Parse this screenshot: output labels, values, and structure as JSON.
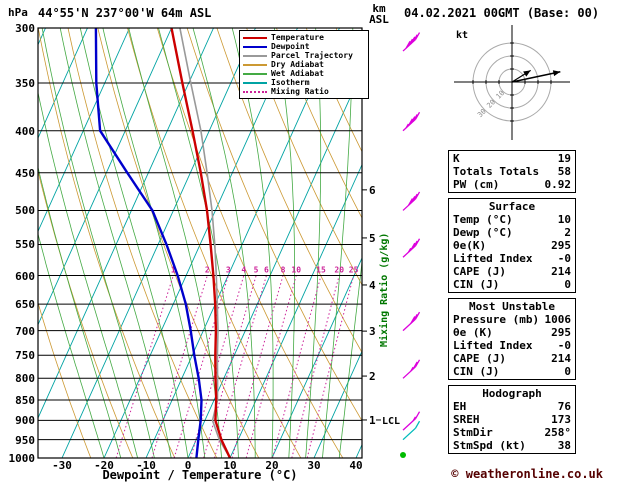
{
  "header": {
    "station": "44°55'N 237°00'W 64m ASL",
    "datetime": "04.02.2021 00GMT (Base: 00)",
    "pressure_unit": "hPa",
    "altitude_unit": [
      "km",
      "ASL"
    ]
  },
  "legend": {
    "items": [
      {
        "label": "Temperature",
        "color": "#CC0000",
        "dash": false
      },
      {
        "label": "Dewpoint",
        "color": "#0000CC",
        "dash": false
      },
      {
        "label": "Parcel Trajectory",
        "color": "#999999",
        "dash": false
      },
      {
        "label": "Dry Adiabat",
        "color": "#CC9933",
        "dash": false
      },
      {
        "label": "Wet Adiabat",
        "color": "#44AA44",
        "dash": false
      },
      {
        "label": "Isotherm",
        "color": "#00A3A3",
        "dash": false
      },
      {
        "label": "Mixing Ratio",
        "color": "#CC2299",
        "dash": true
      }
    ]
  },
  "axes": {
    "x_title": "Dewpoint / Temperature (°C)",
    "x_ticks": [
      -30,
      -20,
      -10,
      0,
      10,
      20,
      30,
      40
    ],
    "pressure_levels": [
      300,
      350,
      400,
      450,
      500,
      550,
      600,
      650,
      700,
      750,
      800,
      850,
      900,
      950,
      1000
    ],
    "km_ticks": [
      {
        "km": 6,
        "p": 472
      },
      {
        "km": 5,
        "p": 540
      },
      {
        "km": 4,
        "p": 616
      },
      {
        "km": 3,
        "p": 701
      },
      {
        "km": 2,
        "p": 795
      },
      {
        "km": 1,
        "p": 899,
        "lcl": true
      }
    ],
    "lcl_label": "LCL",
    "mixing_ratio_axis_label": "Mixing Ratio (g/kg)"
  },
  "chart_data": {
    "type": "skewt",
    "title": "44°55'N 237°00'W 64m ASL",
    "pressure_range_hpa": [
      300,
      1000
    ],
    "temp_axis_range_c": [
      -36,
      41
    ],
    "profiles": {
      "temperature_c": [
        [
          1000,
          10
        ],
        [
          950,
          6
        ],
        [
          900,
          2.5
        ],
        [
          850,
          0.5
        ],
        [
          800,
          -2
        ],
        [
          750,
          -4.5
        ],
        [
          700,
          -7
        ],
        [
          650,
          -10
        ],
        [
          600,
          -13.5
        ],
        [
          550,
          -17.5
        ],
        [
          500,
          -22
        ],
        [
          450,
          -27.5
        ],
        [
          400,
          -34
        ],
        [
          350,
          -41.5
        ],
        [
          300,
          -50
        ]
      ],
      "dewpoint_c": [
        [
          1000,
          2
        ],
        [
          950,
          0.5
        ],
        [
          900,
          -1
        ],
        [
          850,
          -3
        ],
        [
          800,
          -6
        ],
        [
          750,
          -9.5
        ],
        [
          700,
          -13
        ],
        [
          650,
          -17
        ],
        [
          600,
          -22
        ],
        [
          550,
          -28
        ],
        [
          500,
          -35
        ],
        [
          450,
          -45
        ],
        [
          400,
          -56
        ],
        [
          350,
          -62
        ],
        [
          300,
          -68
        ]
      ],
      "parcel_c": [
        [
          1000,
          10
        ],
        [
          950,
          5.5
        ],
        [
          900,
          1.8
        ],
        [
          850,
          0.8
        ],
        [
          800,
          -1.5
        ],
        [
          750,
          -4
        ],
        [
          700,
          -6.5
        ],
        [
          650,
          -9.5
        ],
        [
          600,
          -12.8
        ],
        [
          550,
          -16.5
        ],
        [
          500,
          -20.8
        ],
        [
          450,
          -26
        ],
        [
          400,
          -32
        ],
        [
          350,
          -39.5
        ],
        [
          300,
          -48
        ]
      ]
    },
    "mixing_ratio_lines_gkg": [
      1,
      2,
      3,
      4,
      5,
      6,
      8,
      10,
      15,
      20,
      25
    ],
    "wind_barbs": [
      {
        "p": 320,
        "speed_kt": 50,
        "color": "#DD00DD"
      },
      {
        "p": 400,
        "speed_kt": 45,
        "color": "#DD00DD"
      },
      {
        "p": 500,
        "speed_kt": 40,
        "color": "#DD00DD"
      },
      {
        "p": 570,
        "speed_kt": 35,
        "color": "#DD00DD"
      },
      {
        "p": 700,
        "speed_kt": 30,
        "color": "#DD00DD"
      },
      {
        "p": 800,
        "speed_kt": 25,
        "color": "#DD00DD"
      },
      {
        "p": 925,
        "speed_kt": 15,
        "color": "#DD00DD"
      },
      {
        "p": 950,
        "speed_kt": 10,
        "color": "#00BBBB"
      },
      {
        "p": 1000,
        "speed_kt": 5,
        "color": "#00BB00",
        "marker": "dot"
      }
    ],
    "hodograph": {
      "unit_label": "kt",
      "rings_kt": [
        10,
        20,
        30
      ],
      "storm_dir_deg": 258,
      "storm_speed_kt": 38
    }
  },
  "tables": {
    "sections": [
      {
        "id": "indices",
        "rows": [
          {
            "label": "K",
            "value": "19"
          },
          {
            "label": "Totals Totals",
            "value": "58"
          },
          {
            "label": "PW (cm)",
            "value": "0.92"
          }
        ]
      },
      {
        "id": "surface",
        "title": "Surface",
        "rows": [
          {
            "label": "Temp (°C)",
            "value": "10"
          },
          {
            "label": "Dewp (°C)",
            "value": "2"
          },
          {
            "label": "θe(K)",
            "value": "295"
          },
          {
            "label": "Lifted Index",
            "value": "-0"
          },
          {
            "label": "CAPE (J)",
            "value": "214"
          },
          {
            "label": "CIN (J)",
            "value": "0"
          }
        ]
      },
      {
        "id": "most-unstable",
        "title": "Most Unstable",
        "rows": [
          {
            "label": "Pressure (mb)",
            "value": "1006"
          },
          {
            "label": "θe (K)",
            "value": "295"
          },
          {
            "label": "Lifted Index",
            "value": "-0"
          },
          {
            "label": "CAPE (J)",
            "value": "214"
          },
          {
            "label": "CIN (J)",
            "value": "0"
          }
        ]
      },
      {
        "id": "hodograph",
        "title": "Hodograph",
        "rows": [
          {
            "label": "EH",
            "value": "76"
          },
          {
            "label": "SREH",
            "value": "173"
          },
          {
            "label": "StmDir",
            "value": "258°"
          },
          {
            "label": "StmSpd (kt)",
            "value": "38"
          }
        ]
      }
    ]
  },
  "footer": {
    "copyright": "© weatheronline.co.uk",
    "color": "#550000"
  }
}
